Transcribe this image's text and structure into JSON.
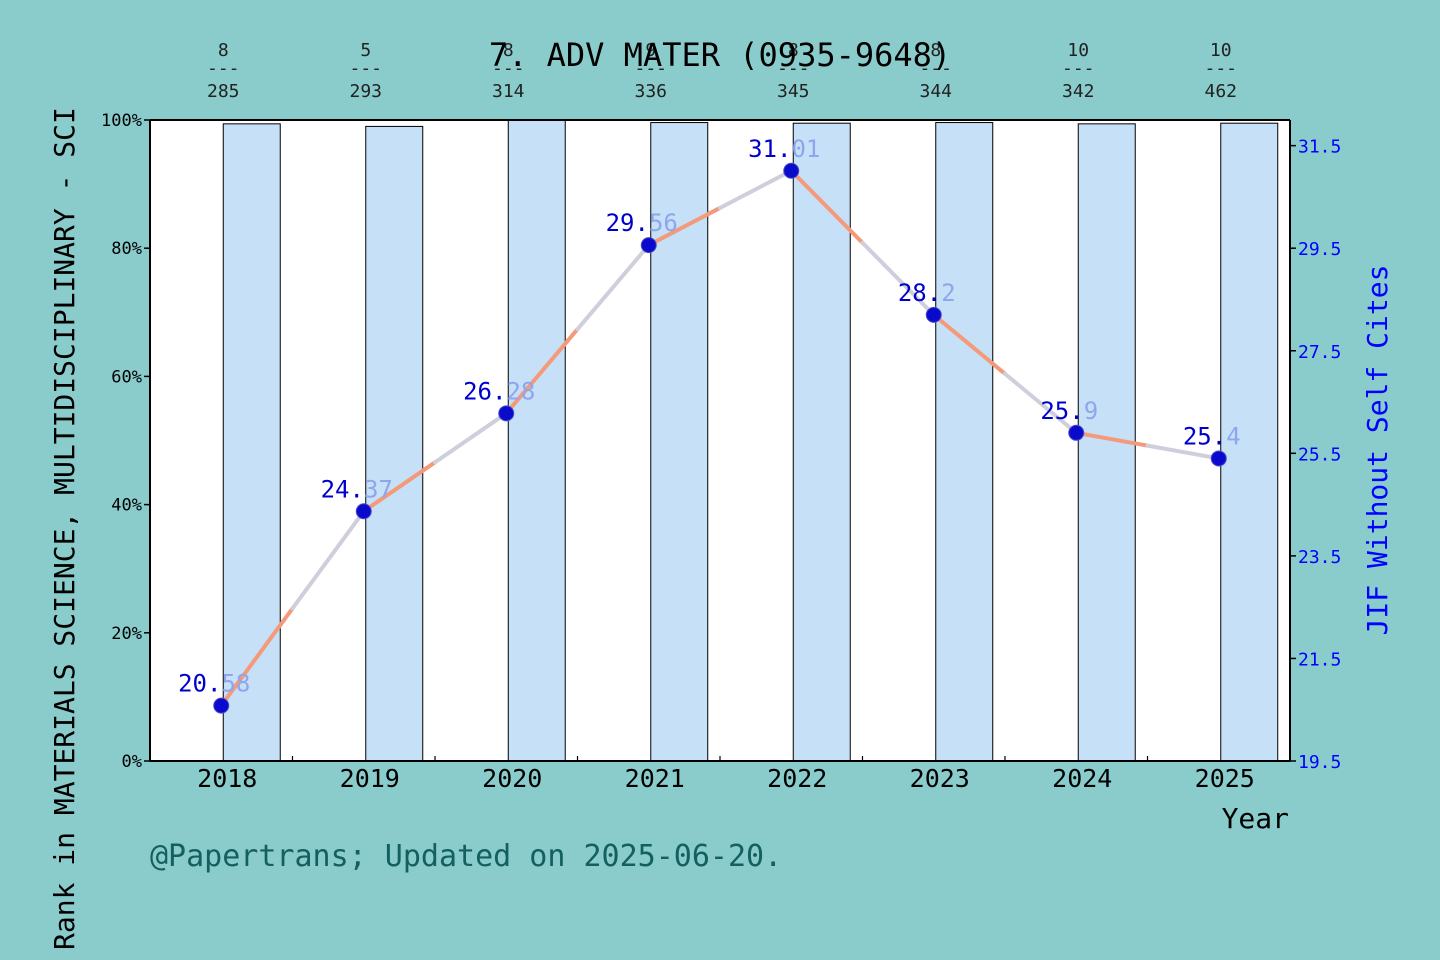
{
  "chart_data": {
    "type": "bar",
    "title": "7. ADV MATER (0935-9648)",
    "xlabel": "Year",
    "ylabel_left": "Rank in MATERIALS SCIENCE, MULTIDISCIPLINARY - SCI",
    "ylabel_right": "JIF Without Self Cites",
    "categories": [
      "2018",
      "2019",
      "2020",
      "2021",
      "2022",
      "2023",
      "2024",
      "2025"
    ],
    "rank_labels": [
      {
        "rank": "8",
        "total": "285"
      },
      {
        "rank": "5",
        "total": "293"
      },
      {
        "rank": "8",
        "total": "314"
      },
      {
        "rank": "9",
        "total": "336"
      },
      {
        "rank": "8",
        "total": "345"
      },
      {
        "rank": "8",
        "total": "344"
      },
      {
        "rank": "10",
        "total": "342"
      },
      {
        "rank": "10",
        "total": "462"
      }
    ],
    "series": [
      {
        "name": "",
        "kind": "bar",
        "axis": "left",
        "values": [
          99.4,
          99.0,
          100.0,
          99.6,
          99.5,
          99.6,
          99.4,
          99.5
        ]
      },
      {
        "name": "",
        "kind": "line",
        "axis": "right",
        "values": [
          20.58,
          24.37,
          26.28,
          29.56,
          31.01,
          28.2,
          25.9,
          25.4
        ],
        "labels": [
          "20.58",
          "24.37",
          "26.28",
          "29.56",
          "31.01",
          "28.2",
          "25.9",
          "25.4"
        ]
      }
    ],
    "ylim_left": [
      0,
      100
    ],
    "yticks_left": [
      "0%",
      "20%",
      "40%",
      "60%",
      "80%",
      "100%"
    ],
    "ylim_right": [
      19.5,
      32
    ],
    "yticks_right": [
      "19.5",
      "21.5",
      "23.5",
      "25.5",
      "27.5",
      "29.5",
      "31.5"
    ],
    "grid": false,
    "colors": {
      "background": "#89cccb",
      "plot_bg": "#ffffff",
      "bar": "#c5e0f7",
      "line_a": "#f49a7a",
      "line_b": "#cfcfdc",
      "marker": "#0a0acc",
      "right_axis": "#0000ff",
      "label_dark": "#0000cc",
      "label_light": "#8ea6ee",
      "footer": "#146060"
    }
  },
  "footer": "@Papertrans; Updated on 2025-06-20."
}
